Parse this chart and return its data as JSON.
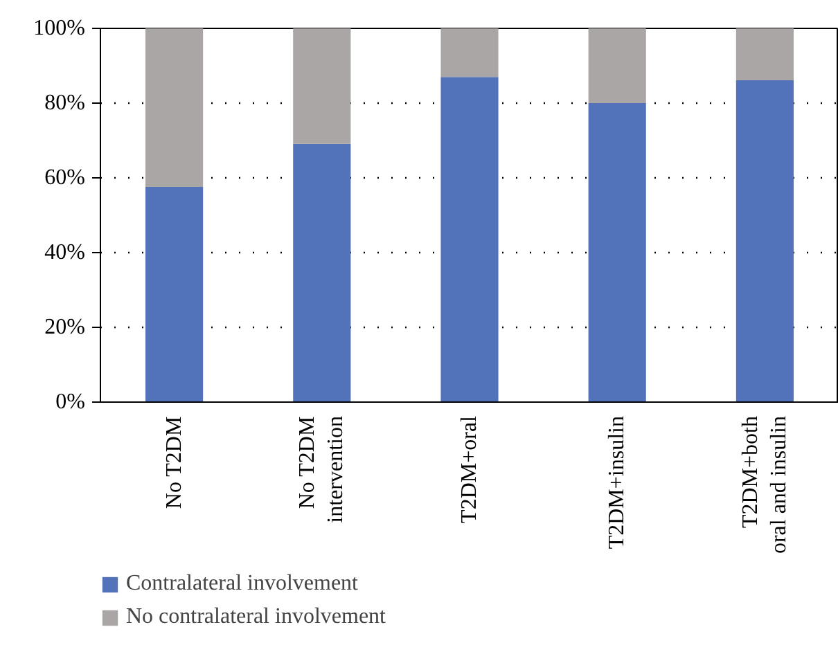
{
  "chart_data": {
    "type": "bar",
    "stacked": true,
    "categories": [
      "No T2DM",
      "No T2DM\nintervention",
      "T2DM+oral",
      "T2DM+insulin",
      "T2DM+both\noral and insulin"
    ],
    "series": [
      {
        "name": "Contralateral involvement",
        "color": "#5272b9",
        "values": [
          57.6,
          69.1,
          87.0,
          80.0,
          86.1
        ]
      },
      {
        "name": "No contralateral involvement",
        "color": "#aaa6a6",
        "values": [
          42.4,
          30.9,
          13.0,
          20.0,
          13.9
        ]
      }
    ],
    "ylim": [
      0,
      100
    ],
    "yticks": [
      {
        "value": 0,
        "label": "0%"
      },
      {
        "value": 20,
        "label": "20%"
      },
      {
        "value": 40,
        "label": "40%"
      },
      {
        "value": 60,
        "label": "60%"
      },
      {
        "value": 80,
        "label": "80%"
      },
      {
        "value": 100,
        "label": "100%"
      }
    ],
    "grid": "y",
    "legend": "bottom"
  }
}
